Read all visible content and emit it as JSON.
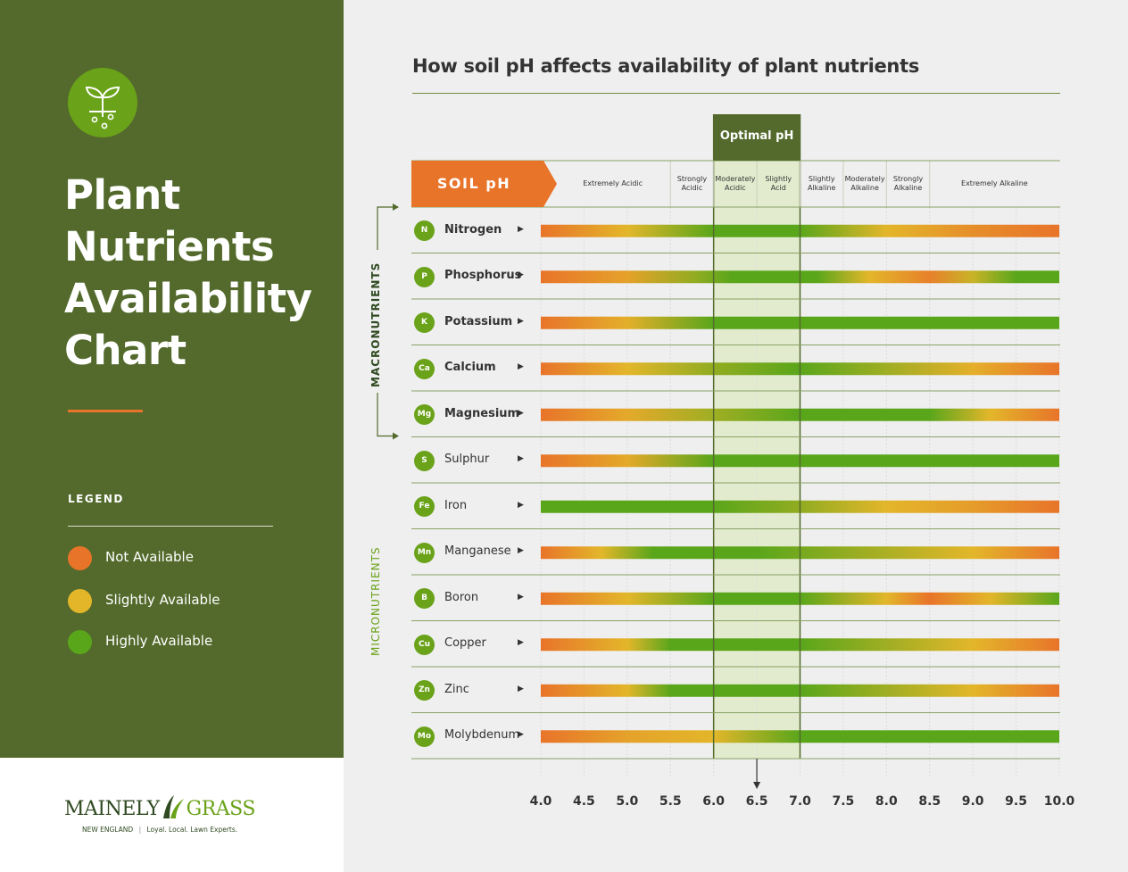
{
  "left_panel": {
    "title_lines": [
      "Plant",
      "Nutrients",
      "Availability",
      "Chart"
    ],
    "legend_title": "LEGEND",
    "legend": [
      {
        "label": "Not Available",
        "color": "#e8742a"
      },
      {
        "label": "Slightly Available",
        "color": "#e3b62a"
      },
      {
        "label": "Highly Available",
        "color": "#5aa61b"
      }
    ]
  },
  "logo": {
    "name_part1": "MAINELY",
    "name_part2": "GRASS",
    "region": "NEW ENGLAND",
    "tagline": "Loyal. Local. Lawn Experts."
  },
  "colors": {
    "panel_green": "#536a2c",
    "accent_orange": "#e8742a",
    "yellow": "#e3b62a",
    "green": "#5aa61b",
    "optimal_band": "#e3ebcf"
  },
  "chart_data": {
    "type": "heatmap",
    "title": "How soil pH affects availability of plant nutrients",
    "header_label": "SOIL pH",
    "optimal_label": "Optimal pH",
    "optimal_range": [
      6.0,
      7.0
    ],
    "xlim": [
      4.0,
      10.0
    ],
    "x_ticks": [
      "4.0",
      "4.5",
      "5.0",
      "5.5",
      "6.0",
      "6.5",
      "7.0",
      "7.5",
      "8.0",
      "8.5",
      "9.0",
      "9.5",
      "10.0"
    ],
    "zones": [
      {
        "label": "Extremely Acidic",
        "range": [
          4.0,
          5.5
        ]
      },
      {
        "label": "Strongly Acidic",
        "range": [
          5.5,
          6.0
        ]
      },
      {
        "label": "Moderately Acidic",
        "range": [
          6.0,
          6.5
        ]
      },
      {
        "label": "Slightly Acid",
        "range": [
          6.5,
          7.0
        ]
      },
      {
        "label": "Slightly Alkaline",
        "range": [
          7.0,
          7.5
        ]
      },
      {
        "label": "Moderately Alkaline",
        "range": [
          7.5,
          8.0
        ]
      },
      {
        "label": "Strongly Alkaline",
        "range": [
          8.0,
          8.5
        ]
      },
      {
        "label": "Extremely Alkaline",
        "range": [
          8.5,
          10.0
        ]
      }
    ],
    "groups": [
      {
        "label": "MACRONUTRIENTS",
        "rows": [
          0,
          4
        ]
      },
      {
        "label": "MICRONUTRIENTS",
        "rows": [
          5,
          11
        ]
      }
    ],
    "availability_scale": {
      "0": "Not Available",
      "1": "Slightly Available",
      "2": "Highly Available"
    },
    "series": [
      {
        "name": "Nitrogen",
        "symbol": "N",
        "stops": [
          [
            4.0,
            0
          ],
          [
            5.0,
            1
          ],
          [
            6.0,
            2
          ],
          [
            7.0,
            2
          ],
          [
            8.0,
            1
          ],
          [
            9.0,
            0.4
          ],
          [
            10.0,
            0
          ]
        ]
      },
      {
        "name": "Phosphorus",
        "symbol": "P",
        "stops": [
          [
            4.0,
            0
          ],
          [
            5.0,
            0.7
          ],
          [
            5.8,
            1.6
          ],
          [
            6.2,
            2
          ],
          [
            7.2,
            2
          ],
          [
            7.8,
            1
          ],
          [
            8.5,
            0.2
          ],
          [
            9.0,
            1.2
          ],
          [
            9.5,
            2
          ],
          [
            10.0,
            2
          ]
        ]
      },
      {
        "name": "Potassium",
        "symbol": "K",
        "stops": [
          [
            4.0,
            0
          ],
          [
            5.0,
            0.9
          ],
          [
            6.0,
            2
          ],
          [
            10.0,
            2
          ]
        ]
      },
      {
        "name": "Calcium",
        "symbol": "Ca",
        "stops": [
          [
            4.0,
            0
          ],
          [
            5.0,
            1
          ],
          [
            6.0,
            1.6
          ],
          [
            7.0,
            2
          ],
          [
            8.0,
            1.5
          ],
          [
            9.0,
            0.9
          ],
          [
            10.0,
            0
          ]
        ]
      },
      {
        "name": "Magnesium",
        "symbol": "Mg",
        "stops": [
          [
            4.0,
            0
          ],
          [
            5.0,
            0.8
          ],
          [
            6.0,
            1.5
          ],
          [
            7.0,
            2
          ],
          [
            8.5,
            2
          ],
          [
            9.2,
            1
          ],
          [
            10.0,
            0
          ]
        ]
      },
      {
        "name": "Sulphur",
        "symbol": "S",
        "stops": [
          [
            4.0,
            0
          ],
          [
            5.0,
            0.8
          ],
          [
            6.0,
            2
          ],
          [
            10.0,
            2
          ]
        ]
      },
      {
        "name": "Iron",
        "symbol": "Fe",
        "stops": [
          [
            4.0,
            2
          ],
          [
            6.0,
            2
          ],
          [
            7.0,
            1.6
          ],
          [
            8.0,
            1
          ],
          [
            9.0,
            0.6
          ],
          [
            10.0,
            0
          ]
        ]
      },
      {
        "name": "Manganese",
        "symbol": "Mn",
        "stops": [
          [
            4.0,
            0
          ],
          [
            4.7,
            1
          ],
          [
            5.3,
            2
          ],
          [
            6.5,
            2
          ],
          [
            7.5,
            1.6
          ],
          [
            9.0,
            1
          ],
          [
            10.0,
            0
          ]
        ]
      },
      {
        "name": "Boron",
        "symbol": "B",
        "stops": [
          [
            4.0,
            0
          ],
          [
            5.0,
            1
          ],
          [
            6.0,
            2
          ],
          [
            7.0,
            2
          ],
          [
            8.0,
            1
          ],
          [
            8.5,
            0
          ],
          [
            9.2,
            1
          ],
          [
            10.0,
            2
          ]
        ]
      },
      {
        "name": "Copper",
        "symbol": "Cu",
        "stops": [
          [
            4.0,
            0
          ],
          [
            5.0,
            1
          ],
          [
            5.5,
            2
          ],
          [
            7.0,
            2
          ],
          [
            8.0,
            1.5
          ],
          [
            9.0,
            1
          ],
          [
            10.0,
            0
          ]
        ]
      },
      {
        "name": "Zinc",
        "symbol": "Zn",
        "stops": [
          [
            4.0,
            0
          ],
          [
            5.0,
            1
          ],
          [
            5.5,
            2
          ],
          [
            7.0,
            2
          ],
          [
            8.0,
            1.5
          ],
          [
            9.0,
            1
          ],
          [
            10.0,
            0
          ]
        ]
      },
      {
        "name": "Molybdenum",
        "symbol": "Mo",
        "stops": [
          [
            4.0,
            0
          ],
          [
            5.0,
            0.7
          ],
          [
            6.0,
            1
          ],
          [
            7.0,
            2
          ],
          [
            10.0,
            2
          ]
        ]
      }
    ]
  }
}
